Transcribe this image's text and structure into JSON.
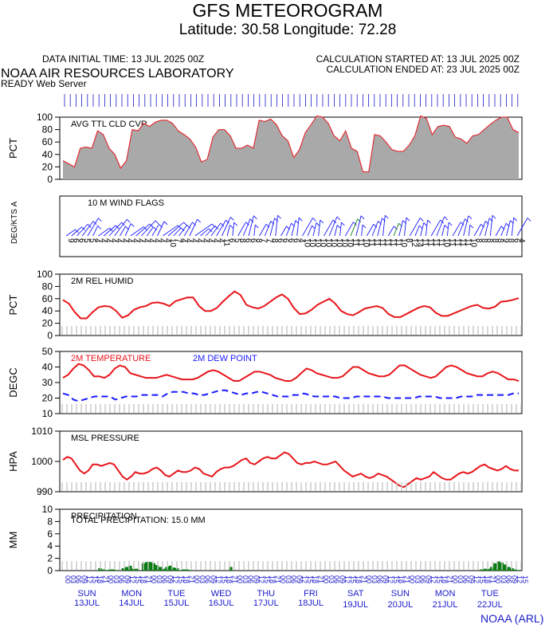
{
  "header": {
    "title": "GFS METEOROGRAM",
    "subtitle": "Latitude: 30.58 Longitude:  72.28",
    "initial_time": "DATA INITIAL TIME: 13 JUL 2025 00Z",
    "calc_started": "CALCULATION STARTED AT: 13 JUL 2025 00Z",
    "calc_ended": "CALCULATION ENDED AT: 23 JUL 2025 00Z",
    "lab": "NOAA AIR RESOURCES LABORATORY",
    "server": "READY Web Server"
  },
  "footer": {
    "credit": "NOAA (ARL)"
  },
  "colors": {
    "cloud_fill": "#a9a9a9",
    "cloud_line": "#e8151b",
    "red": "#e8151b",
    "blue": "#1a1aff",
    "green": "#0a7d12",
    "axis_text": "#1a1acc"
  },
  "time_axis": {
    "hour_labels": [
      "00",
      "03",
      "06",
      "09",
      "12",
      "15",
      "18",
      "21"
    ],
    "days": [
      {
        "dow": "SUN",
        "date": "13JUL"
      },
      {
        "dow": "MON",
        "date": "14JUL"
      },
      {
        "dow": "TUE",
        "date": "15JUL"
      },
      {
        "dow": "WED",
        "date": "16JUL"
      },
      {
        "dow": "THU",
        "date": "17JUL"
      },
      {
        "dow": "FRI",
        "date": "18JUL"
      },
      {
        "dow": "SAT",
        "date": "19JUL"
      },
      {
        "dow": "SUN",
        "date": "20JUL"
      },
      {
        "dow": "MON",
        "date": "21JUL"
      },
      {
        "dow": "TUE",
        "date": "22JUL"
      }
    ]
  },
  "chart_data": [
    {
      "type": "area",
      "title": "AVG TTL CLD CVR",
      "ylabel": "PCT",
      "ylim": [
        0,
        100
      ],
      "yticks": [
        0,
        20,
        40,
        60,
        80,
        100
      ],
      "series": [
        {
          "name": "AVG TTL CLD CVR",
          "values": [
            30,
            25,
            20,
            50,
            52,
            50,
            78,
            72,
            50,
            40,
            18,
            30,
            80,
            78,
            90,
            85,
            92,
            95,
            95,
            90,
            78,
            72,
            65,
            52,
            28,
            32,
            68,
            80,
            80,
            70,
            50,
            50,
            55,
            50,
            95,
            93,
            97,
            88,
            70,
            62,
            35,
            48,
            75,
            88,
            102,
            100,
            90,
            70,
            62,
            78,
            50,
            45,
            12,
            12,
            72,
            70,
            60,
            48,
            45,
            45,
            55,
            70,
            102,
            98,
            72,
            85,
            87,
            85,
            68,
            65,
            58,
            70,
            72,
            80,
            88,
            95,
            100,
            100,
            80,
            75
          ]
        }
      ]
    },
    {
      "type": "barbs",
      "title": "10 M  WIND FLAGS",
      "ylabel": "DEG/KTS",
      "ylabel_suffix": "A",
      "speed_labels": [
        "9",
        "6",
        "6",
        "5",
        "5",
        "4",
        "4",
        "4",
        "4",
        "4",
        "4",
        "4",
        "4",
        "4",
        "4",
        "4",
        "4",
        "4",
        "4",
        "10",
        "7",
        "4",
        "4",
        "4",
        "4",
        "4",
        "4",
        "4",
        "4",
        "11",
        "6",
        "5",
        "8",
        "6",
        "6",
        "8",
        "7",
        "7",
        "8",
        "6",
        "6",
        "6",
        "6",
        "4",
        "10",
        "10",
        "10",
        "10",
        "10",
        "10",
        "10",
        "10",
        "10",
        "11",
        "11",
        "10",
        "11",
        "11",
        "11",
        "11",
        "11",
        "11",
        "10",
        "8",
        "12",
        "14",
        "11",
        "11",
        "11",
        "11",
        "10",
        "11",
        "11",
        "11",
        "11",
        "10",
        "8",
        "8",
        "8",
        "8",
        "8",
        "9",
        "8",
        "6",
        "4"
      ],
      "green_barbs": [
        53,
        61
      ]
    },
    {
      "type": "line",
      "title": "2M REL HUMID",
      "ylabel": "PCT",
      "ylim": [
        0,
        100
      ],
      "yticks": [
        0,
        20,
        40,
        60,
        80,
        100
      ],
      "series": [
        {
          "name": "2M REL HUMID",
          "values": [
            58,
            52,
            38,
            28,
            28,
            38,
            46,
            48,
            47,
            40,
            29,
            33,
            42,
            46,
            48,
            53,
            54,
            52,
            48,
            56,
            59,
            62,
            62,
            48,
            40,
            40,
            45,
            55,
            64,
            72,
            66,
            50,
            46,
            44,
            48,
            55,
            62,
            67,
            60,
            45,
            35,
            36,
            42,
            50,
            55,
            60,
            52,
            40,
            35,
            33,
            38,
            44,
            46,
            48,
            45,
            35,
            30,
            30,
            35,
            40,
            45,
            48,
            46,
            37,
            32,
            32,
            36,
            40,
            44,
            48,
            50,
            45,
            44,
            47,
            55,
            56,
            58,
            61
          ]
        }
      ]
    },
    {
      "type": "line",
      "title": "2M TEMPERATURE",
      "ylabel": "DEGC",
      "ylim": [
        10,
        50
      ],
      "yticks": [
        10,
        20,
        30,
        40,
        50
      ],
      "series": [
        {
          "name": "2M TEMPERATURE",
          "values": [
            33,
            35,
            39,
            42,
            41,
            38,
            34,
            34,
            33,
            35,
            39,
            41,
            40,
            36,
            35,
            34,
            33,
            33,
            33,
            34,
            35,
            34,
            33,
            32,
            32,
            32,
            33,
            35,
            37,
            38,
            37,
            35,
            33,
            31,
            31,
            33,
            35,
            37,
            37,
            36,
            35,
            33,
            32,
            31,
            31,
            33,
            36,
            39,
            38,
            36,
            35,
            34,
            33,
            33,
            34,
            37,
            40,
            40,
            38,
            36,
            35,
            34,
            34,
            35,
            38,
            41,
            41,
            39,
            37,
            35,
            34,
            33,
            34,
            37,
            40,
            41,
            40,
            38,
            36,
            35,
            34,
            34,
            36,
            37,
            36,
            34,
            32,
            32,
            31
          ],
          "color_key": "red"
        },
        {
          "name": "2M  DEW POINT",
          "values": [
            23,
            22,
            19,
            18,
            19,
            20,
            21,
            21,
            21,
            21,
            19,
            20,
            21,
            21,
            21,
            22,
            22,
            22,
            22,
            21,
            23,
            24,
            24,
            24,
            23,
            23,
            22,
            22,
            23,
            24,
            25,
            25,
            24,
            23,
            22,
            23,
            23,
            24,
            24,
            23,
            22,
            21,
            21,
            21,
            22,
            22,
            23,
            22,
            21,
            21,
            21,
            21,
            21,
            20,
            20,
            20,
            21,
            21,
            21,
            21,
            21,
            21,
            20,
            20,
            20,
            20,
            20,
            20,
            21,
            21,
            21,
            21,
            20,
            20,
            20,
            20,
            21,
            21,
            21,
            22,
            22,
            22,
            22,
            22,
            22,
            22,
            23,
            23
          ],
          "color_key": "blue"
        }
      ]
    },
    {
      "type": "line",
      "title": "MSL PRESSURE",
      "ylabel": "HPA",
      "ylim": [
        990,
        1010
      ],
      "yticks": [
        990,
        1000,
        1010
      ],
      "series": [
        {
          "name": "MSL PRESSURE",
          "values": [
            1000.5,
            1001.5,
            1001,
            999,
            997,
            996,
            997,
            999,
            999,
            998.5,
            999,
            999.5,
            999,
            997,
            995,
            994,
            995,
            996.5,
            996,
            996,
            996.5,
            997.5,
            998,
            997,
            995.5,
            995,
            996,
            997,
            996.5,
            996.5,
            997,
            998,
            997.5,
            996,
            995.5,
            995,
            996.5,
            997.5,
            998,
            998,
            998.5,
            999.5,
            1000.5,
            1001,
            999.5,
            999,
            1000,
            1001,
            1001.5,
            1001,
            1001,
            1002,
            1003,
            1002.5,
            1001,
            999.5,
            999,
            999.5,
            999.5,
            1000,
            999.5,
            999,
            999,
            999.5,
            1000,
            998.5,
            997,
            996,
            995,
            995.5,
            996,
            995,
            994.5,
            995,
            996,
            995.5,
            995,
            994,
            993,
            992,
            991.5,
            992.5,
            993.5,
            994.5,
            994,
            994.5,
            995,
            996.5,
            995.5,
            994.5,
            994,
            994,
            995,
            996,
            996.5,
            996,
            996.5,
            997.5,
            998.5,
            999,
            998,
            997.5,
            997,
            997.5,
            998.5,
            997.5,
            997,
            997
          ]
        }
      ]
    },
    {
      "type": "bar",
      "title": "PRECIPITATION",
      "ylabel": "MM",
      "ylim": [
        0,
        10
      ],
      "yticks": [
        0,
        2,
        4,
        6,
        8,
        10
      ],
      "total_label": "TOTAL PRECIPITATION:  15.0 MM",
      "series": [
        {
          "name": "PRECIPITATION",
          "values": [
            0,
            0,
            0,
            0,
            0,
            0,
            0,
            0,
            0,
            0,
            0,
            0.4,
            0.2,
            0.1,
            0.2,
            0.2,
            0.1,
            0,
            0.4,
            0.6,
            0.8,
            0.3,
            0.3,
            0,
            1.2,
            1.4,
            1.4,
            1.2,
            0.9,
            0.6,
            0.3,
            0.6,
            0.8,
            0.5,
            0.4,
            0.1,
            0.2,
            0.2,
            0.1,
            0,
            0,
            0,
            0,
            0,
            0,
            0,
            0,
            0,
            0,
            0,
            0.6,
            0,
            0,
            0,
            0,
            0,
            0,
            0,
            0,
            0,
            0,
            0,
            0,
            0,
            0,
            0,
            0,
            0,
            0,
            0,
            0,
            0,
            0,
            0,
            0,
            0,
            0,
            0,
            0,
            0,
            0,
            0,
            0,
            0,
            0,
            0,
            0,
            0,
            0,
            0,
            0,
            0,
            0,
            0,
            0,
            0,
            0,
            0,
            0,
            0,
            0,
            0,
            0,
            0,
            0,
            0,
            0,
            0,
            0,
            0,
            0,
            0,
            0,
            0,
            0,
            0,
            0,
            0,
            0,
            0,
            0,
            0,
            0,
            0,
            0,
            0.2,
            0.3,
            0.3,
            0.6,
            1.2,
            1.5,
            1.3,
            1.0,
            0.6,
            0.4,
            0.2,
            0.1,
            0
          ]
        }
      ]
    }
  ]
}
